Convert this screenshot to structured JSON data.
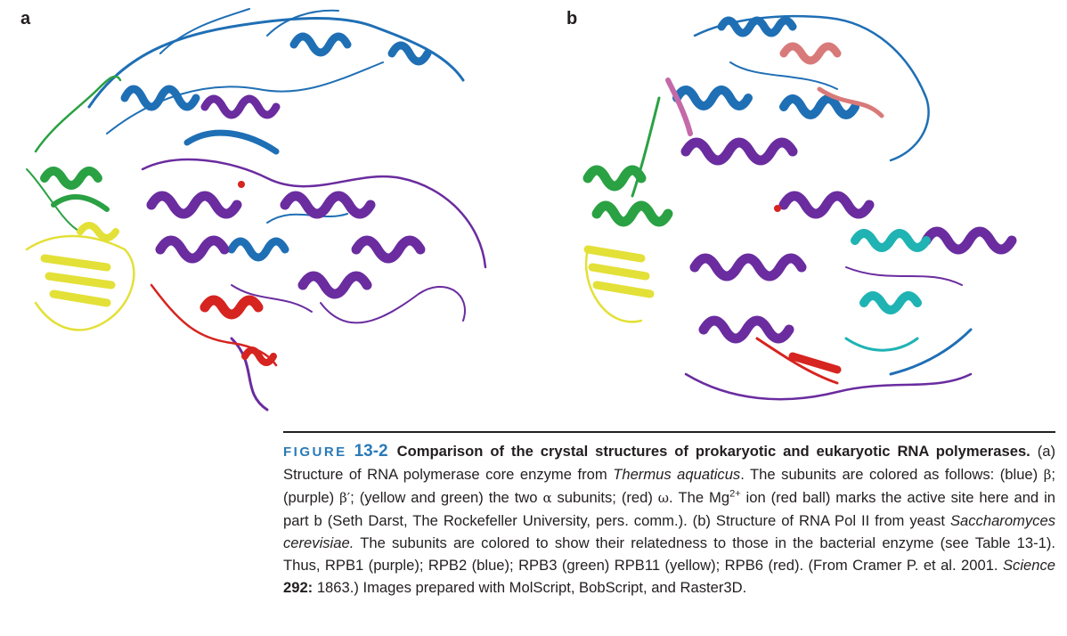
{
  "panels": {
    "a": {
      "label": "a"
    },
    "b": {
      "label": "b"
    }
  },
  "colors": {
    "blue": "#1f6fb5",
    "purple": "#6a2c9f",
    "green": "#2aa143",
    "yellow": "#e3e038",
    "red": "#d62420",
    "cyan": "#1fb3b3",
    "pink": "#d87a7a",
    "magenta": "#c46aa8",
    "caption_accent": "#2a7ab8"
  },
  "caption": {
    "figure_word": "FIGURE",
    "figure_number": "13-2",
    "title": "Comparison of the crystal structures of prokaryotic and eukaryotic RNA polymerases.",
    "s1": " (a) Structure of RNA polymerase core enzyme from ",
    "organism_a": "Thermus aquaticus",
    "s2": ". The subunits are colored as follows: (blue) ",
    "beta": "β",
    "s3": "; (purple) ",
    "beta_prime": "β′",
    "s4": "; (yellow and green) the two ",
    "alpha": "α",
    "s5": " subunits; (red) ",
    "omega": "ω",
    "s6": ". The Mg",
    "mg_sup": "2+",
    "s7": " ion (red ball) marks the active site here and in part b (Seth Darst, The Rockefeller University, pers. comm.). (b) Structure of RNA Pol II from yeast ",
    "organism_b": "Saccharomyces cerevisiae.",
    "s8": " The subunits are colored to show their relatedness to those in the bacterial enzyme (see Table 13-1). Thus, RPB1 (purple); RPB2 (blue); RPB3 (green) RPB11 (yellow); RPB6 (red). (From Cramer P. et al. 2001. ",
    "journal": "Science",
    "volume": " 292:",
    "s9": " 1863.) Images prepared with MolScript, BobScript, and Raster3D."
  }
}
